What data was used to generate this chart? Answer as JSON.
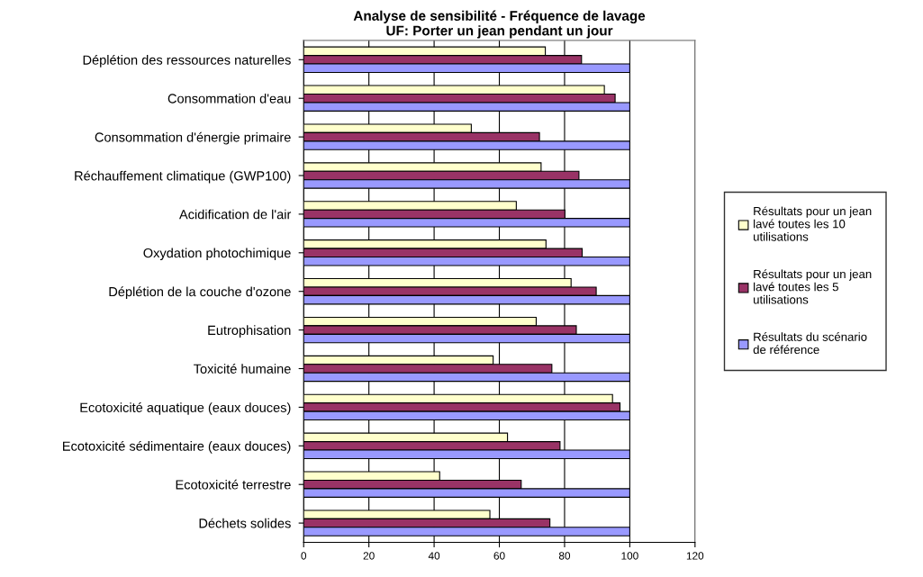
{
  "chart_data": {
    "type": "bar",
    "orientation": "horizontal",
    "title": "Analyse de sensibilité - Fréquence de lavage\nUF: Porter un jean pendant un jour",
    "categories": [
      "Déplétion des ressources naturelles",
      "Consommation d'eau",
      "Consommation d'énergie primaire",
      "Réchauffement climatique (GWP100)",
      "Acidification de l'air",
      "Oxydation photochimique",
      "Déplétion de la couche d'ozone",
      "Eutrophisation",
      "Toxicité humaine",
      "Ecotoxicité aquatique (eaux douces)",
      "Ecotoxicité sédimentaire (eaux douces)",
      "Ecotoxicité terrestre",
      "Déchets solides"
    ],
    "series": [
      {
        "name": "Résultats pour un jean\nlavé toutes les 10\nutilisations",
        "color": "#ffffcc",
        "values": [
          74.1,
          92.2,
          51.4,
          72.8,
          65.2,
          74.3,
          82.0,
          71.3,
          58.1,
          94.7,
          62.5,
          41.7,
          57.1
        ]
      },
      {
        "name": "Résultats pour un jean\nlavé toutes les 5\nutilisations",
        "color": "#993366",
        "values": [
          85.2,
          95.5,
          72.3,
          84.4,
          80.1,
          85.4,
          89.7,
          83.6,
          76.1,
          97.0,
          78.6,
          66.7,
          75.5
        ]
      },
      {
        "name": "Résultats du scénario\nde référence",
        "color": "#9999ff",
        "values": [
          100,
          100,
          100,
          100,
          100,
          100,
          100,
          100,
          100,
          100,
          100,
          100,
          100
        ]
      }
    ],
    "xlim": [
      0,
      120
    ],
    "xticks": [
      0,
      20,
      40,
      60,
      80,
      100,
      120
    ],
    "grid": "x",
    "legend": "right"
  }
}
